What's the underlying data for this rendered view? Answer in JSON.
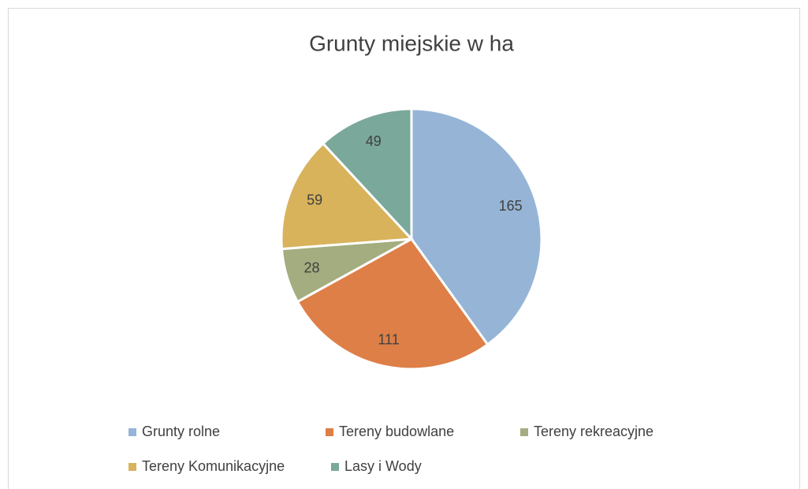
{
  "chart_data": {
    "type": "pie",
    "title": "Grunty miejskie w ha",
    "categories": [
      "Grunty rolne",
      "Tereny budowlane",
      "Tereny rekreacyjne",
      "Tereny Komunikacyjne",
      "Lasy i Wody"
    ],
    "values": [
      165,
      111,
      28,
      59,
      49
    ],
    "colors": [
      "#96b5d6",
      "#dd7f47",
      "#a3ad80",
      "#d8b35c",
      "#7aa89b"
    ],
    "legend": "bottom"
  }
}
